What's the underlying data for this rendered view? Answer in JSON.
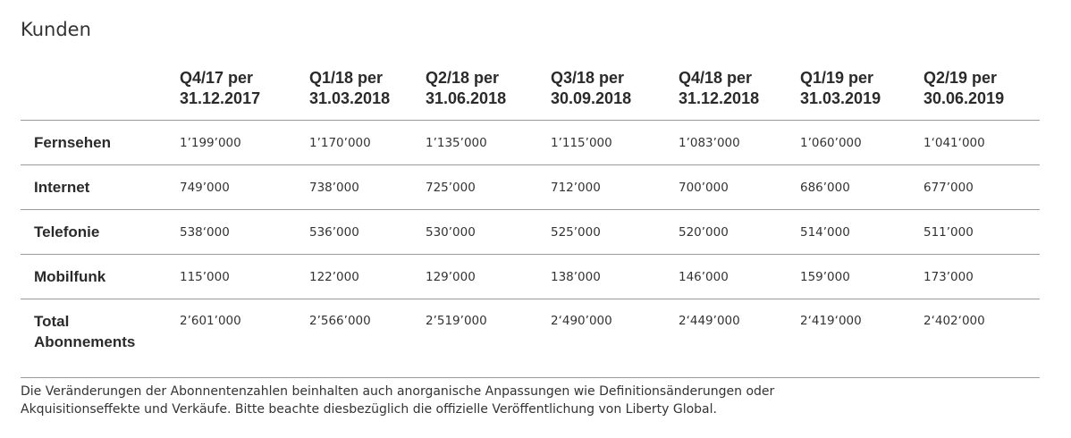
{
  "title": "Kunden",
  "table": {
    "columns": [
      {
        "line1": "Q4/17 per",
        "line2": "31.12.2017"
      },
      {
        "line1": "Q1/18 per",
        "line2": "31.03.2018"
      },
      {
        "line1": "Q2/18 per",
        "line2": "31.06.2018"
      },
      {
        "line1": "Q3/18 per",
        "line2": "30.09.2018"
      },
      {
        "line1": "Q4/18 per",
        "line2": "31.12.2018"
      },
      {
        "line1": "Q1/19 per",
        "line2": "31.03.2019"
      },
      {
        "line1": "Q2/19 per",
        "line2": "30.06.2019"
      }
    ],
    "rows": [
      {
        "label": "Fernsehen",
        "values": [
          "1’199’000",
          "1’170’000",
          "1’135’000",
          "1’115’000",
          "1’083’000",
          "1’060’000",
          "1‘041‘000"
        ]
      },
      {
        "label": "Internet",
        "values": [
          "749’000",
          "738’000",
          "725’000",
          "712’000",
          "700’000",
          "686’000",
          "677’000"
        ]
      },
      {
        "label": "Telefonie",
        "values": [
          "538‘000",
          "536’000",
          "530’000",
          "525’000",
          "520’000",
          "514’000",
          "511’000"
        ]
      },
      {
        "label": "Mobilfunk",
        "values": [
          "115’000",
          "122’000",
          "129’000",
          "138’000",
          "146’000",
          "159’000",
          "173’000"
        ]
      }
    ],
    "total": {
      "label_line1": "Total",
      "label_line2": "Abonnements",
      "values": [
        "2’601’000",
        "2’566’000",
        "2’519’000",
        "2‘490’000",
        "2‘449’000",
        "2‘419‘000",
        "2‘402‘000"
      ]
    }
  },
  "note": {
    "line1": "Die Veränderungen der Abonnentenzahlen beinhalten auch anorganische Anpassungen wie Definitionsänderungen oder",
    "line2": "Akquisitionseffekte und Verkäufe. Bitte beachte diesbezüglich die offizielle Veröffentlichung von Liberty Global."
  }
}
